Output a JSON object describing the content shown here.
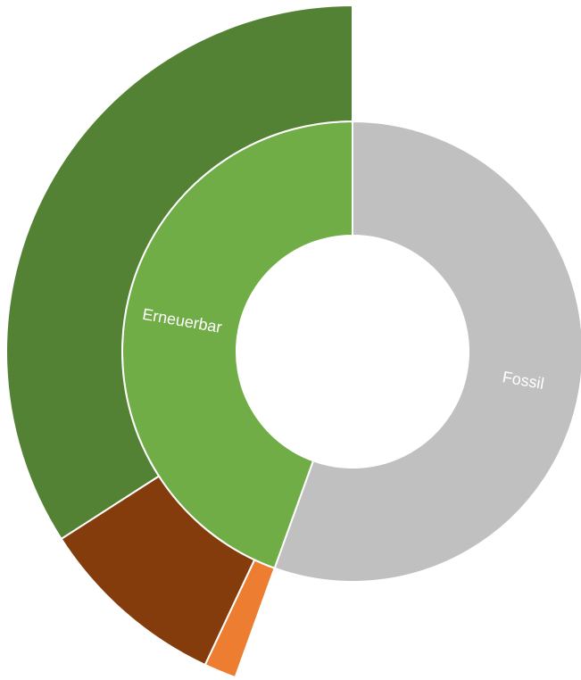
{
  "chart_data": {
    "type": "pie",
    "inner_ring": [
      {
        "label": "Fossil",
        "value": 55.5,
        "color": "#c0c0c0"
      },
      {
        "label": "Erneuerbar",
        "value": 44.5,
        "color": "#70ad47"
      }
    ],
    "outer_ring": [
      {
        "value": 34.1,
        "color": "#548235"
      },
      {
        "value": 8.9,
        "color": "#843c0c"
      },
      {
        "value": 1.5,
        "color": "#ed7d31"
      }
    ],
    "legend": "none"
  }
}
